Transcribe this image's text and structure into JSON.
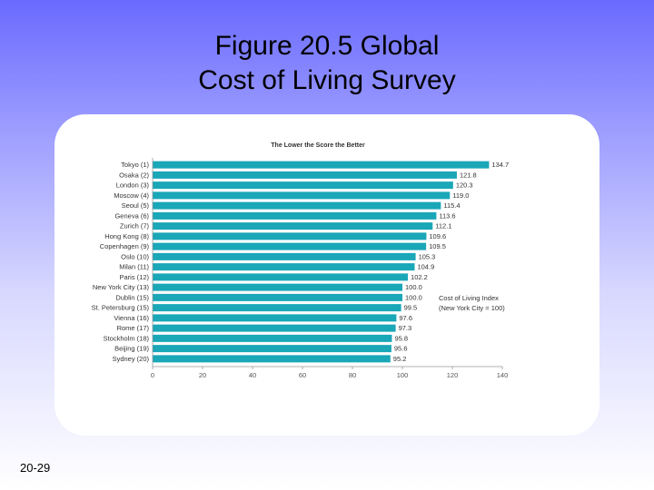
{
  "slide": {
    "title_line1": "Figure 20.5 Global",
    "title_line2": "Cost of Living Survey",
    "page_number": "20-29"
  },
  "chart_data": {
    "type": "bar",
    "orientation": "horizontal",
    "title": "The Lower the Score the Better",
    "annotation_line1": "Cost of Living Index",
    "annotation_line2": "(New York City = 100)",
    "categories": [
      "Tokyo (1)",
      "Osaka (2)",
      "London (3)",
      "Moscow (4)",
      "Seoul (5)",
      "Geneva (6)",
      "Zurich (7)",
      "Hong Kong (8)",
      "Copenhagen (9)",
      "Oslo (10)",
      "Milan (11)",
      "Paris (12)",
      "New York City (13)",
      "Dublin (15)",
      "St. Petersburg (15)",
      "Vienna (16)",
      "Rome (17)",
      "Stockholm (18)",
      "Beijing (19)",
      "Sydney (20)"
    ],
    "values": [
      134.7,
      121.8,
      120.3,
      119.0,
      115.4,
      113.6,
      112.1,
      109.6,
      109.5,
      105.3,
      104.9,
      102.2,
      100.0,
      100.0,
      99.5,
      97.6,
      97.3,
      95.8,
      95.6,
      95.2
    ],
    "value_labels": [
      "134.7",
      "121.8",
      "120.3",
      "119.0",
      "115.4",
      "113.6",
      "112.1",
      "109.6",
      "109.5",
      "105.3",
      "104.9",
      "102.2",
      "100.0",
      "100.0",
      "99.5",
      "97.6",
      "97.3",
      "95.8",
      "95.6",
      "95.2"
    ],
    "xticks": [
      0,
      20,
      40,
      60,
      80,
      100,
      120,
      140
    ],
    "xlim": [
      0,
      140
    ],
    "bar_color": "#1aa7b8",
    "grid": false
  }
}
